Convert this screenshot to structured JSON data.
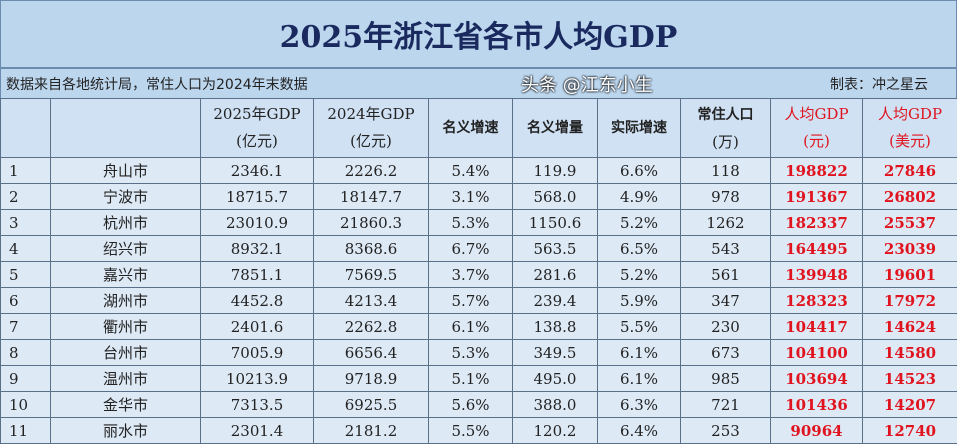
{
  "title": "2025年浙江省各市人均GDP",
  "source": "数据来自各地统计局，常住人口为2024年末数据",
  "author": "制表：冲之星云",
  "headers": {
    "gdp2025": "2025年GDP",
    "gdp2024": "2024年GDP",
    "unit_yiyuan": "(亿元)",
    "nominal_growth": "名义增速",
    "nominal_increase": "名义增量",
    "real_growth": "实际增速",
    "population": "常住人口",
    "pop_unit": "(万)",
    "per_capita": "人均GDP",
    "unit_yuan": "(元)",
    "unit_usd": "(美元)"
  },
  "rows": [
    [
      "1",
      "舟山市",
      "2346.1",
      "2226.2",
      "5.4%",
      "119.9",
      "6.6%",
      "118",
      "198822",
      "27846"
    ],
    [
      "2",
      "宁波市",
      "18715.7",
      "18147.7",
      "3.1%",
      "568.0",
      "4.9%",
      "978",
      "191367",
      "26802"
    ],
    [
      "3",
      "杭州市",
      "23010.9",
      "21860.3",
      "5.3%",
      "1150.6",
      "5.2%",
      "1262",
      "182337",
      "25537"
    ],
    [
      "4",
      "绍兴市",
      "8932.1",
      "8368.6",
      "6.7%",
      "563.5",
      "6.5%",
      "543",
      "164495",
      "23039"
    ],
    [
      "5",
      "嘉兴市",
      "7851.1",
      "7569.5",
      "3.7%",
      "281.6",
      "5.2%",
      "561",
      "139948",
      "19601"
    ],
    [
      "6",
      "湖州市",
      "4452.8",
      "4213.4",
      "5.7%",
      "239.4",
      "5.9%",
      "347",
      "128323",
      "17972"
    ],
    [
      "7",
      "衢州市",
      "2401.6",
      "2262.8",
      "6.1%",
      "138.8",
      "5.5%",
      "230",
      "104417",
      "14624"
    ],
    [
      "8",
      "台州市",
      "7005.9",
      "6656.4",
      "5.3%",
      "349.5",
      "6.1%",
      "673",
      "104100",
      "14580"
    ],
    [
      "9",
      "温州市",
      "10213.9",
      "9718.9",
      "5.1%",
      "495.0",
      "6.1%",
      "985",
      "103694",
      "14523"
    ],
    [
      "10",
      "金华市",
      "7313.5",
      "6925.5",
      "5.6%",
      "388.0",
      "6.3%",
      "721",
      "101436",
      "14207"
    ],
    [
      "11",
      "丽水市",
      "2301.4",
      "2181.2",
      "5.5%",
      "120.2",
      "6.4%",
      "253",
      "90964",
      "12740"
    ]
  ],
  "watermark": "头条 @江东小生",
  "colors": {
    "highlight": "#e0141e",
    "header_bg": "#bcd6ee",
    "title": "#1a2a5e"
  }
}
